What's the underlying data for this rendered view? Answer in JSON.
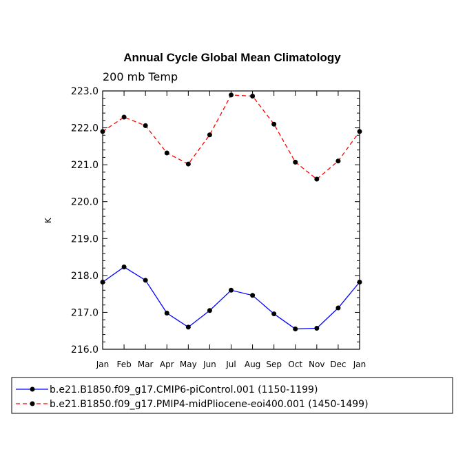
{
  "chart_data": {
    "type": "line",
    "title": "Annual Cycle Global Mean Climatology",
    "subtitle": "200 mb Temp",
    "xlabel": "",
    "ylabel": "K",
    "categories": [
      "Jan",
      "Feb",
      "Mar",
      "Apr",
      "May",
      "Jun",
      "Jul",
      "Aug",
      "Sep",
      "Oct",
      "Nov",
      "Dec",
      "Jan"
    ],
    "ylim": [
      216.0,
      223.0
    ],
    "yticks": [
      "216.0",
      "217.0",
      "218.0",
      "219.0",
      "220.0",
      "221.0",
      "222.0",
      "223.0"
    ],
    "grid": false,
    "legend_position": "bottom",
    "series": [
      {
        "name": "b.e21.B1850.f09_g17.CMIP6-piControl.001 (1150-1199)",
        "color": "#0000ff",
        "dash": "solid",
        "values": [
          217.82,
          218.23,
          217.87,
          216.98,
          216.6,
          217.05,
          217.6,
          217.46,
          216.96,
          216.55,
          216.57,
          217.12,
          217.82
        ]
      },
      {
        "name": "b.e21.B1850.f09_g17.PMIP4-midPliocene-eoi400.001 (1450-1499)",
        "color": "#ff0000",
        "dash": "dashed",
        "values": [
          221.9,
          222.29,
          222.06,
          221.32,
          221.02,
          221.81,
          222.89,
          222.86,
          222.1,
          221.07,
          220.61,
          221.1,
          221.9
        ]
      }
    ]
  }
}
